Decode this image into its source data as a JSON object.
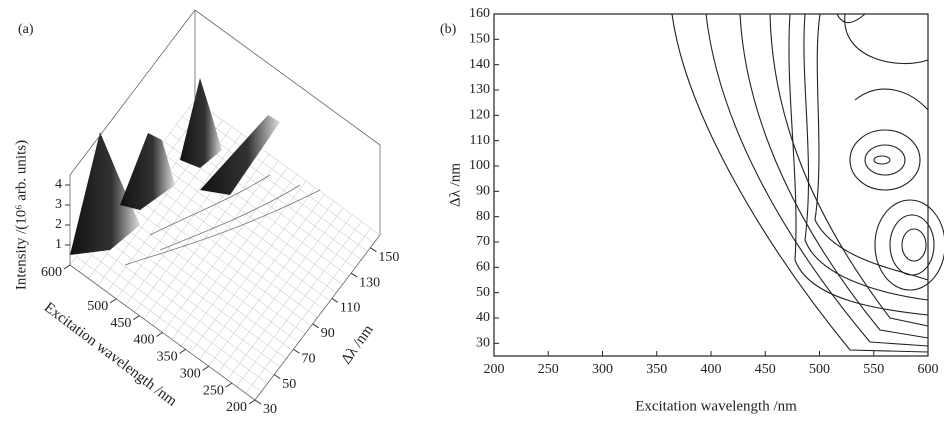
{
  "chart_data": [
    {
      "type": "surface3d",
      "panel_label": "(a)",
      "zlabel": "Intensity /(10⁶ arb. units)",
      "xlabel": "Excitation wavelength /nm",
      "ylabel": "Δλ /nm",
      "xlim": [
        200,
        600
      ],
      "xticks": [
        200,
        250,
        300,
        350,
        400,
        450,
        500,
        600
      ],
      "ylim": [
        30,
        160
      ],
      "yticks": [
        30,
        50,
        70,
        90,
        110,
        130,
        150
      ],
      "zlim": [
        0,
        4.5
      ],
      "zticks": [
        1,
        2,
        3,
        4
      ]
    },
    {
      "type": "contour",
      "panel_label": "(b)",
      "xlabel": "Excitation wavelength /nm",
      "ylabel": "Δλ /nm",
      "xlim": [
        200,
        600
      ],
      "xticks": [
        200,
        250,
        300,
        350,
        400,
        450,
        500,
        550,
        600
      ],
      "ylim": [
        25,
        160
      ],
      "yticks": [
        30,
        40,
        50,
        60,
        70,
        80,
        90,
        100,
        110,
        120,
        130,
        140,
        150,
        160
      ]
    }
  ]
}
